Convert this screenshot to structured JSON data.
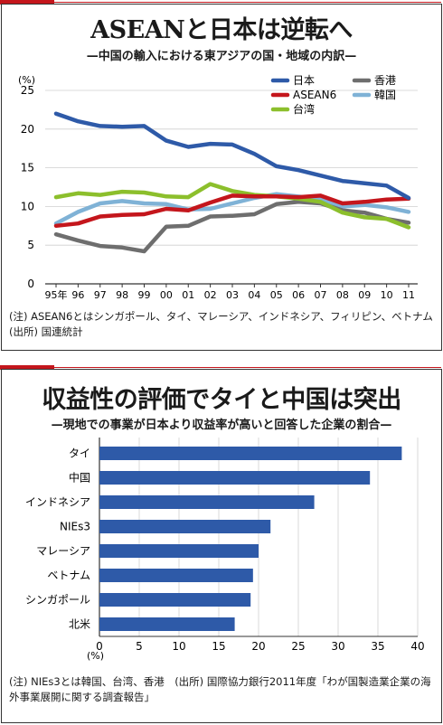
{
  "chart1": {
    "title": "ASEANと日本は逆転へ",
    "subtitle": "—中国の輸入における東アジアの国・地域の内訳—",
    "note": "(注) ASEAN6とはシンガポール、タイ、マレーシア、インドネシア、フィリピン、ベトナム　(出所) 国連統計",
    "y_unit": "(%)"
  },
  "chart2": {
    "title": "収益性の評価でタイと中国は突出",
    "subtitle": "—現地での事業が日本より収益率が高いと回答した企業の割合—",
    "note": "(注) NIEs3とは韓国、台湾、香港　(出所) 国際協力銀行2011年度「わが国製造業企業の海外事業展開に関する調査報告」",
    "x_unit": "(%)"
  },
  "chart_data": [
    {
      "type": "line",
      "x": [
        "95年",
        "96",
        "97",
        "98",
        "99",
        "00",
        "01",
        "02",
        "03",
        "04",
        "05",
        "06",
        "07",
        "08",
        "09",
        "10",
        "11"
      ],
      "ylim": [
        0,
        25
      ],
      "yticks": [
        0,
        5,
        10,
        15,
        20,
        25
      ],
      "grid": true,
      "legend": "top-right",
      "series": [
        {
          "name": "日本",
          "color": "#2e5aa8",
          "values": [
            22.0,
            21.0,
            20.4,
            20.3,
            20.4,
            18.5,
            17.7,
            18.1,
            18.0,
            16.8,
            15.2,
            14.7,
            14.0,
            13.3,
            13.0,
            12.7,
            11.1
          ]
        },
        {
          "name": "ASEAN6",
          "color": "#c4161c",
          "values": [
            7.5,
            7.8,
            8.7,
            8.9,
            9.0,
            9.7,
            9.5,
            10.5,
            11.4,
            11.3,
            11.3,
            11.2,
            11.4,
            10.4,
            10.6,
            10.9,
            11.0
          ]
        },
        {
          "name": "台湾",
          "color": "#8cbf2c",
          "values": [
            11.2,
            11.7,
            11.5,
            11.9,
            11.8,
            11.3,
            11.2,
            12.9,
            12.0,
            11.5,
            11.3,
            11.0,
            10.6,
            9.2,
            8.6,
            8.4,
            7.3
          ]
        },
        {
          "name": "香港",
          "color": "#6e6e6e",
          "values": [
            6.4,
            5.6,
            4.9,
            4.7,
            4.2,
            7.4,
            7.5,
            8.7,
            8.8,
            9.0,
            10.3,
            10.6,
            10.4,
            9.5,
            9.2,
            8.4,
            7.9
          ]
        },
        {
          "name": "韓国",
          "color": "#7fb2d6",
          "values": [
            7.8,
            9.3,
            10.4,
            10.7,
            10.4,
            10.3,
            9.6,
            9.7,
            10.4,
            11.1,
            11.6,
            11.3,
            10.9,
            10.0,
            10.2,
            9.9,
            9.3
          ]
        }
      ]
    },
    {
      "type": "bar",
      "orientation": "horizontal",
      "categories": [
        "タイ",
        "中国",
        "インドネシア",
        "NIEs3",
        "マレーシア",
        "ベトナム",
        "シンガポール",
        "北米"
      ],
      "values": [
        38.0,
        34.0,
        27.0,
        21.5,
        20.0,
        19.3,
        19.0,
        17.0
      ],
      "xlim": [
        0,
        40
      ],
      "xticks": [
        0,
        5,
        10,
        15,
        20,
        25,
        30,
        35,
        40
      ],
      "color": "#2e5aa8",
      "grid": true
    }
  ]
}
